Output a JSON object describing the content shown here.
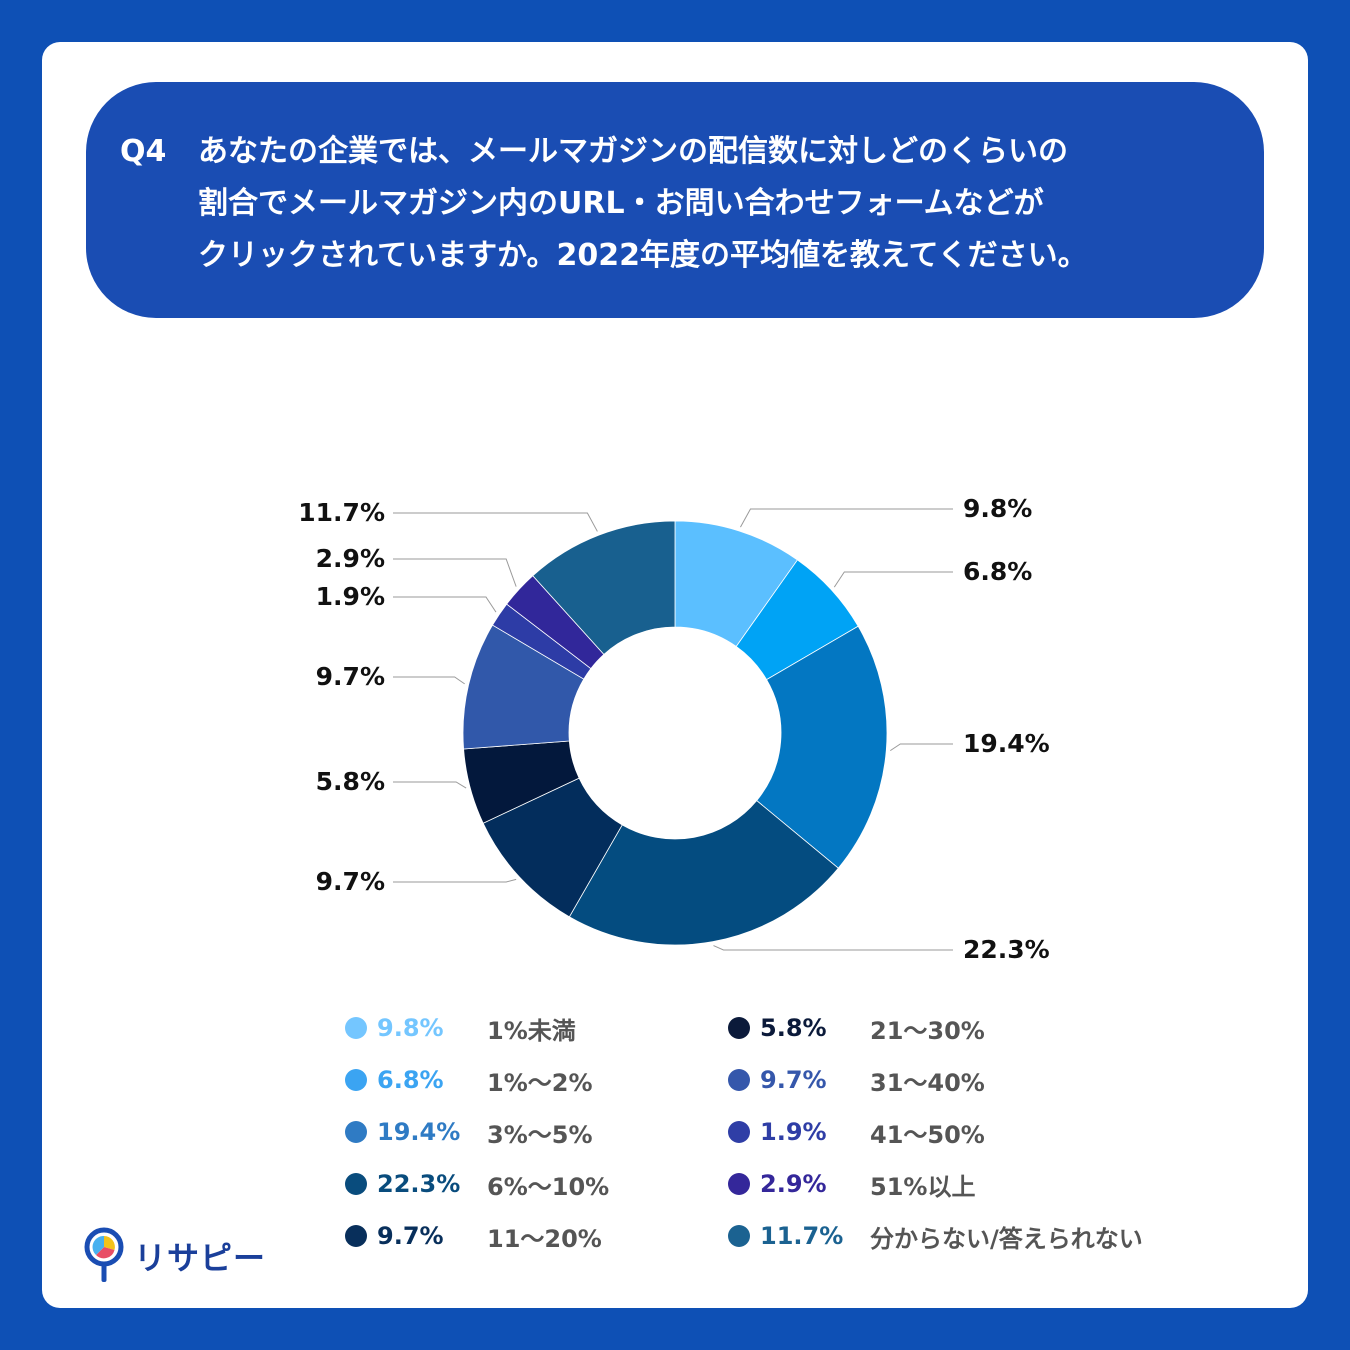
{
  "question": {
    "number": "Q4",
    "lines": [
      "あなたの企業では、メールマガジンの配信数に対しどのくらいの",
      "割合でメールマガジン内のURL・お問い合わせフォームなどが",
      "クリックされていますか。2022年度の平均値を教えてください。"
    ]
  },
  "chart_data": {
    "type": "pie",
    "donut": true,
    "start": "top",
    "direction": "clockwise",
    "slices": [
      {
        "category": "1%未満",
        "value": 9.8,
        "label": "9.8%",
        "color": "#5bbfff",
        "legend_color": "#74c6ff"
      },
      {
        "category": "1%〜2%",
        "value": 6.8,
        "label": "6.8%",
        "color": "#00a3f5",
        "legend_color": "#3ba4f2"
      },
      {
        "category": "3%〜5%",
        "value": 19.4,
        "label": "19.4%",
        "color": "#0377c2",
        "legend_color": "#2f7bc4"
      },
      {
        "category": "6%〜10%",
        "value": 22.3,
        "label": "22.3%",
        "color": "#044c80",
        "legend_color": "#094c7d"
      },
      {
        "category": "11〜20%",
        "value": 9.7,
        "label": "9.7%",
        "color": "#032d5c",
        "legend_color": "#082f5b"
      },
      {
        "category": "21〜30%",
        "value": 5.8,
        "label": "5.8%",
        "color": "#03183c",
        "legend_color": "#0b1a3a"
      },
      {
        "category": "31〜40%",
        "value": 9.7,
        "label": "9.7%",
        "color": "#3158aa",
        "legend_color": "#3557ab"
      },
      {
        "category": "41〜50%",
        "value": 1.9,
        "label": "1.9%",
        "color": "#2d3ca6",
        "legend_color": "#2f3ea6"
      },
      {
        "category": "51%以上",
        "value": 2.9,
        "label": "2.9%",
        "color": "#31279a",
        "legend_color": "#34279a"
      },
      {
        "category": "分からない/答えられない",
        "value": 11.7,
        "label": "11.7%",
        "color": "#18608f",
        "legend_color": "#1b6291"
      }
    ]
  },
  "brand": {
    "name": "リサピー",
    "icon": "magnifier-pie-icon"
  }
}
